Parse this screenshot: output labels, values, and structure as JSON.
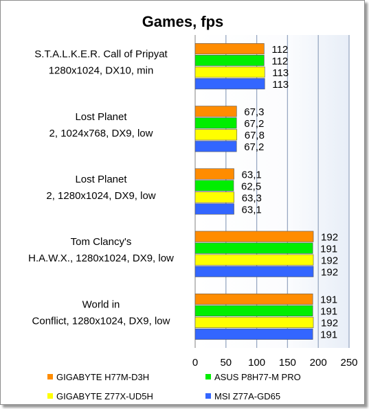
{
  "chart_data": {
    "type": "bar",
    "orientation": "horizontal",
    "title": "Games, fps",
    "xlabel": "",
    "ylabel": "",
    "xlim": [
      0,
      250
    ],
    "xticks": [
      0,
      50,
      100,
      150,
      200,
      250
    ],
    "grid": true,
    "legend_position": "bottom",
    "categories": [
      [
        "S.T.A.L.K.E.R. Call of Pripyat",
        "1280x1024, DX10, min"
      ],
      [
        "Lost Planet",
        "2, 1024x768, DX9, low"
      ],
      [
        "Lost Planet",
        "2, 1280x1024, DX9, low"
      ],
      [
        "Tom Clancy's",
        "H.A.W.X., 1280x1024, DX9, low"
      ],
      [
        "World in",
        "Conflict, 1280x1024, DX9, low"
      ]
    ],
    "series": [
      {
        "name": "GIGABYTE H77M-D3H",
        "color": "#ff8c00",
        "values": [
          112,
          67.3,
          63.1,
          192,
          191
        ],
        "labels": [
          "112",
          "67,3",
          "63,1",
          "192",
          "191"
        ]
      },
      {
        "name": "ASUS P8H77-M PRO",
        "color": "#00ee00",
        "values": [
          112,
          67.2,
          62.5,
          191,
          191
        ],
        "labels": [
          "112",
          "67,2",
          "62,5",
          "191",
          "191"
        ]
      },
      {
        "name": "GIGABYTE Z77X-UD5H",
        "color": "#ffff00",
        "values": [
          113,
          67.8,
          63.3,
          192,
          192
        ],
        "labels": [
          "113",
          "67,8",
          "63,3",
          "192",
          "192"
        ]
      },
      {
        "name": "MSI Z77A-GD65",
        "color": "#3366ff",
        "values": [
          113,
          67.2,
          63.1,
          192,
          191
        ],
        "labels": [
          "113",
          "67,2",
          "63,1",
          "192",
          "191"
        ]
      }
    ]
  }
}
